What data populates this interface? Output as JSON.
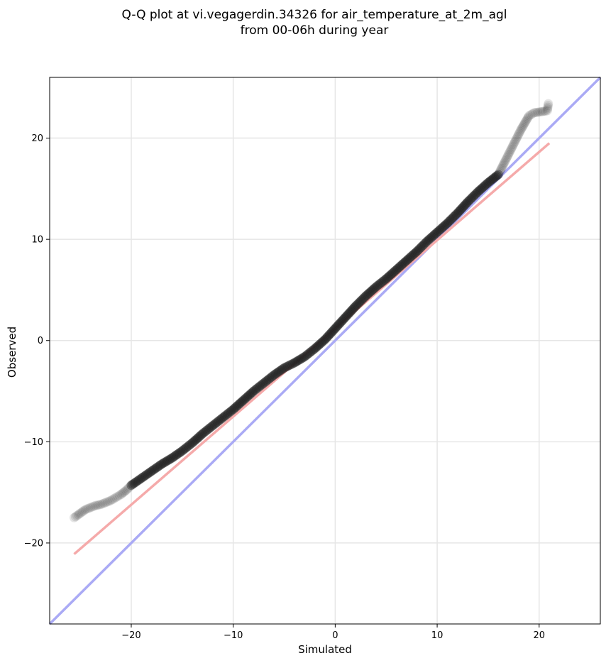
{
  "chart_data": {
    "type": "scatter",
    "title": "Q-Q plot at vi.vegagerdin.34326 for air_temperature_at_2m_agl",
    "subtitle": "from 00-06h during year",
    "xlabel": "Simulated",
    "ylabel": "Observed",
    "xlim": [
      -28,
      26
    ],
    "ylim": [
      -28,
      26
    ],
    "xticks": [
      -20,
      -10,
      0,
      10,
      20
    ],
    "yticks": [
      -20,
      -10,
      0,
      10,
      20
    ],
    "xtick_labels": [
      "−20",
      "−10",
      "0",
      "10",
      "20"
    ],
    "ytick_labels": [
      "−20",
      "−10",
      "0",
      "10",
      "20"
    ],
    "grid": true,
    "reference_line": {
      "kind": "identity y=x",
      "color": "#aaaaf5"
    },
    "fit_line": {
      "x": [
        -25.6,
        21
      ],
      "y": [
        -21.1,
        19.5
      ],
      "color": "#f5aaaa"
    },
    "series": [
      {
        "marker_color": "#222222",
        "x": [
          -25.6,
          -24.5,
          -24.0,
          -23.5,
          -23.0,
          -22.5,
          -22.0,
          -21.5,
          -21.0,
          -20.5,
          -20.0,
          -19.0,
          -18.0,
          -17.0,
          -16.0,
          -15.0,
          -14.0,
          -13.0,
          -12.0,
          -11.0,
          -10.0,
          -9.0,
          -8.0,
          -7.0,
          -6.0,
          -5.0,
          -4.0,
          -3.0,
          -2.0,
          -1.0,
          0.0,
          1.0,
          2.0,
          3.0,
          4.0,
          5.0,
          6.0,
          7.0,
          8.0,
          9.0,
          10.0,
          11.0,
          12.0,
          13.0,
          14.0,
          15.0,
          15.5,
          16.0,
          16.3,
          16.6,
          17.0,
          17.4,
          17.8,
          18.2,
          18.6,
          19.0,
          19.5,
          20.8,
          20.9
        ],
        "y": [
          -17.5,
          -16.7,
          -16.5,
          -16.3,
          -16.2,
          -16.0,
          -15.8,
          -15.5,
          -15.2,
          -14.8,
          -14.3,
          -13.6,
          -12.9,
          -12.2,
          -11.6,
          -10.9,
          -10.1,
          -9.2,
          -8.4,
          -7.6,
          -6.8,
          -5.9,
          -5.0,
          -4.2,
          -3.4,
          -2.7,
          -2.2,
          -1.6,
          -0.8,
          0.1,
          1.2,
          2.3,
          3.4,
          4.4,
          5.3,
          6.1,
          7.0,
          7.9,
          8.8,
          9.8,
          10.7,
          11.6,
          12.6,
          13.7,
          14.7,
          15.6,
          16.0,
          16.4,
          17.0,
          17.6,
          18.4,
          19.2,
          20.0,
          20.8,
          21.5,
          22.2,
          22.5,
          22.7,
          23.4
        ]
      }
    ]
  }
}
